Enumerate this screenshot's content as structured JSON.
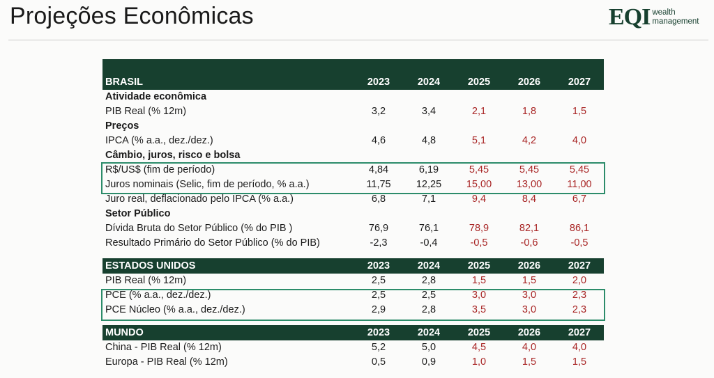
{
  "header": {
    "title": "Projeções Econômicas",
    "logo_mark": "EQI",
    "logo_line1": "wealth",
    "logo_line2": "management"
  },
  "brasil": {
    "title": "BRASIL",
    "years": [
      "2023",
      "2024",
      "2025",
      "2026",
      "2027"
    ],
    "atividade": {
      "label": "Atividade econômica",
      "rows": [
        {
          "label": "PIB Real (% 12m)",
          "values": [
            "3,2",
            "3,4",
            "2,1",
            "1,8",
            "1,5"
          ]
        }
      ]
    },
    "precos": {
      "label": "Preços",
      "rows": [
        {
          "label": "IPCA (% a.a., dez./dez.)",
          "values": [
            "4,6",
            "4,8",
            "5,1",
            "4,2",
            "4,0"
          ]
        }
      ]
    },
    "cambio": {
      "label": "Câmbio, juros, risco e bolsa",
      "rows": [
        {
          "label": "R$/US$ (fim de período)",
          "values": [
            "4,84",
            "6,19",
            "5,45",
            "5,45",
            "5,45"
          ]
        },
        {
          "label": "Juros nominais (Selic, fim de período, % a.a.)",
          "values": [
            "11,75",
            "12,25",
            "15,00",
            "13,00",
            "11,00"
          ]
        },
        {
          "label": "Juro real, deflacionado pelo IPCA (% a.a.)",
          "values": [
            "6,8",
            "7,1",
            "9,4",
            "8,4",
            "6,7"
          ]
        }
      ]
    },
    "setor": {
      "label": "Setor Público",
      "rows": [
        {
          "label": "Dívida Bruta do Setor Público (% do PIB )",
          "values": [
            "76,9",
            "76,1",
            "78,9",
            "82,1",
            "86,1"
          ]
        },
        {
          "label": "Resultado Primário do Setor Público (% do PIB)",
          "values": [
            "-2,3",
            "-0,4",
            "-0,5",
            "-0,6",
            "-0,5"
          ]
        }
      ]
    }
  },
  "eua": {
    "title": "ESTADOS UNIDOS",
    "years": [
      "2023",
      "2024",
      "2025",
      "2026",
      "2027"
    ],
    "rows": [
      {
        "label": "PIB Real (% 12m)",
        "values": [
          "2,5",
          "2,8",
          "1,5",
          "1,5",
          "2,0"
        ]
      },
      {
        "label": "PCE (% a.a., dez./dez.)",
        "values": [
          "2,5",
          "2,5",
          "3,0",
          "3,0",
          "2,3"
        ]
      },
      {
        "label": "PCE Núcleo (% a.a., dez./dez.)",
        "values": [
          "2,9",
          "2,8",
          "3,5",
          "3,0",
          "2,3"
        ]
      }
    ]
  },
  "mundo": {
    "title": "MUNDO",
    "years": [
      "2023",
      "2024",
      "2025",
      "2026",
      "2027"
    ],
    "rows": [
      {
        "label": "China - PIB Real (% 12m)",
        "values": [
          "5,2",
          "5,0",
          "4,5",
          "4,0",
          "4,0"
        ]
      },
      {
        "label": "Europa - PIB Real (% 12m)",
        "values": [
          "0,5",
          "0,9",
          "1,0",
          "1,5",
          "1,5"
        ]
      }
    ]
  },
  "colors": {
    "header_bg": "#17402f",
    "projection_text": "#a82424",
    "highlight_border": "#2c8c6a"
  }
}
